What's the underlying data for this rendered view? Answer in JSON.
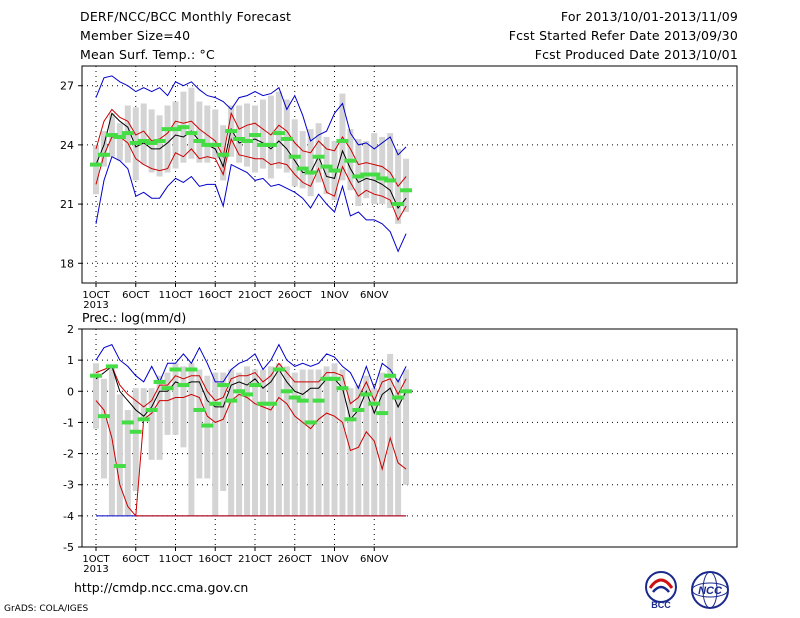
{
  "header": {
    "title": "DERF/NCC/BCC Monthly Forecast",
    "member_size": "Member Size=40",
    "variable": "Mean Surf. Temp.: °C",
    "for_period": "For 2013/10/01-2013/11/09",
    "fcst_started": "Fcst Started Refer Date 2013/09/30",
    "fcst_produced": "Fcst Produced Date 2013/10/01"
  },
  "footer": {
    "url": "http://cmdp.ncc.cma.gov.cn",
    "grads": "GrADS: COLA/IGES",
    "logo_left": "BCC",
    "logo_right": "NCC"
  },
  "colors": {
    "ensemble_max_min": "#0000cc",
    "spread": "#cc0000",
    "mean": "#000000",
    "box": "#d4d4d4",
    "marker": "#44dd44"
  },
  "chart_data": [
    {
      "type": "line",
      "title": "Mean Surf. Temp.: °C",
      "x_tick_labels": [
        "1OCT",
        "6OCT",
        "11OCT",
        "16OCT",
        "21OCT",
        "26OCT",
        "1NOV",
        "6NOV"
      ],
      "x_year_label": "2013",
      "x_dates": [
        "2013-10-01",
        "2013-10-02",
        "2013-10-03",
        "2013-10-04",
        "2013-10-05",
        "2013-10-06",
        "2013-10-07",
        "2013-10-08",
        "2013-10-09",
        "2013-10-10",
        "2013-10-11",
        "2013-10-12",
        "2013-10-13",
        "2013-10-14",
        "2013-10-15",
        "2013-10-16",
        "2013-10-17",
        "2013-10-18",
        "2013-10-19",
        "2013-10-20",
        "2013-10-21",
        "2013-10-22",
        "2013-10-23",
        "2013-10-24",
        "2013-10-25",
        "2013-10-26",
        "2013-10-27",
        "2013-10-28",
        "2013-10-29",
        "2013-10-30",
        "2013-10-31",
        "2013-11-01",
        "2013-11-02",
        "2013-11-03",
        "2013-11-04",
        "2013-11-05",
        "2013-11-06",
        "2013-11-07",
        "2013-11-08",
        "2013-11-09"
      ],
      "y_ticks": [
        18,
        21,
        24,
        27
      ],
      "ylim": [
        17,
        28
      ],
      "grid": true,
      "series": [
        {
          "role": "max",
          "values": [
            26.4,
            27.4,
            27.5,
            27.2,
            27.0,
            26.7,
            26.9,
            26.7,
            26.9,
            26.5,
            27.2,
            27.0,
            27.2,
            26.8,
            26.5,
            26.4,
            26.2,
            25.8,
            26.4,
            26.5,
            26.7,
            26.5,
            26.6,
            26.9,
            25.8,
            26.5,
            25.5,
            24.2,
            24.5,
            24.7,
            25.6,
            26.1,
            24.6,
            24.0,
            24.1,
            23.8,
            24.1,
            24.4,
            23.5,
            23.9
          ]
        },
        {
          "role": "upper",
          "values": [
            23.8,
            25.2,
            25.8,
            25.4,
            25.2,
            24.5,
            24.7,
            24.2,
            24.3,
            24.6,
            25.2,
            25.1,
            25.2,
            24.8,
            24.5,
            24.2,
            23.4,
            25.6,
            24.8,
            25.0,
            25.1,
            24.8,
            24.5,
            25.0,
            24.7,
            24.1,
            23.7,
            23.6,
            24.2,
            23.8,
            23.7,
            24.4,
            23.8,
            23.0,
            23.1,
            23.0,
            22.9,
            22.6,
            21.9,
            22.4
          ]
        },
        {
          "role": "mean",
          "values": [
            23.0,
            24.0,
            25.6,
            25.2,
            24.9,
            23.9,
            24.1,
            23.8,
            23.8,
            24.1,
            24.5,
            24.4,
            24.7,
            24.2,
            24.0,
            23.8,
            22.9,
            24.8,
            24.1,
            24.2,
            24.3,
            24.1,
            23.8,
            24.2,
            23.8,
            23.2,
            22.6,
            22.6,
            23.4,
            22.4,
            22.3,
            23.7,
            22.8,
            22.1,
            22.3,
            22.2,
            22.0,
            21.7,
            20.8,
            21.3
          ]
        },
        {
          "role": "lower",
          "values": [
            22.0,
            23.5,
            24.4,
            24.4,
            24.1,
            23.3,
            23.0,
            22.8,
            22.7,
            22.8,
            23.6,
            23.4,
            23.8,
            23.3,
            23.4,
            23.3,
            22.5,
            24.3,
            23.5,
            23.4,
            23.3,
            23.3,
            23.0,
            23.1,
            23.0,
            22.5,
            22.1,
            21.9,
            22.8,
            21.6,
            21.4,
            22.9,
            22.1,
            21.4,
            21.7,
            21.5,
            21.4,
            21.2,
            20.2,
            20.9
          ]
        },
        {
          "role": "min",
          "values": [
            20.0,
            22.2,
            23.4,
            23.2,
            22.8,
            21.4,
            21.6,
            21.3,
            21.3,
            21.9,
            22.3,
            22.1,
            22.4,
            21.9,
            22.0,
            22.0,
            20.9,
            23.0,
            22.8,
            22.6,
            22.2,
            22.3,
            21.9,
            22.0,
            21.8,
            21.6,
            21.3,
            20.8,
            21.5,
            21.0,
            20.6,
            21.9,
            20.4,
            20.6,
            20.2,
            20.2,
            20.0,
            19.6,
            18.6,
            19.5
          ]
        }
      ],
      "boxes": {
        "high": [
          24.0,
          24.7,
          25.6,
          25.1,
          26.0,
          25.9,
          26.1,
          25.8,
          25.5,
          26.0,
          26.2,
          26.7,
          26.9,
          26.2,
          26.0,
          25.8,
          25.0,
          26.0,
          26.0,
          26.1,
          26.0,
          26.3,
          26.5,
          26.7,
          26.3,
          25.3,
          24.7,
          24.8,
          25.1,
          24.4,
          24.2,
          26.6,
          24.8,
          24.3,
          24.2,
          24.6,
          24.4,
          24.6,
          23.8,
          23.3
        ],
        "low": [
          21.5,
          22.9,
          23.4,
          23.2,
          23.1,
          22.2,
          23.0,
          22.6,
          22.4,
          22.6,
          22.8,
          23.1,
          23.3,
          23.1,
          23.1,
          23.3,
          22.2,
          23.4,
          23.1,
          22.9,
          22.6,
          22.8,
          22.3,
          22.8,
          22.6,
          21.9,
          21.8,
          21.4,
          22.1,
          21.5,
          21.2,
          22.2,
          21.7,
          20.9,
          21.3,
          21.0,
          21.0,
          20.8,
          20.0,
          20.6
        ]
      },
      "markers": [
        23.0,
        23.5,
        24.5,
        24.4,
        24.6,
        24.1,
        24.2,
        24.1,
        24.2,
        24.8,
        24.8,
        24.9,
        24.6,
        24.2,
        24.0,
        24.0,
        23.5,
        24.7,
        24.3,
        24.2,
        24.5,
        24.0,
        24.0,
        24.6,
        24.3,
        23.4,
        22.8,
        22.6,
        23.4,
        22.9,
        22.7,
        24.2,
        23.2,
        22.4,
        22.5,
        22.5,
        22.3,
        22.2,
        21.0,
        21.7
      ]
    },
    {
      "type": "line",
      "title": "Prec.: log(mm/d)",
      "x_tick_labels": [
        "1OCT",
        "6OCT",
        "11OCT",
        "16OCT",
        "21OCT",
        "26OCT",
        "1NOV",
        "6NOV"
      ],
      "x_year_label": "2013",
      "x_dates": [
        "2013-10-01",
        "2013-10-02",
        "2013-10-03",
        "2013-10-04",
        "2013-10-05",
        "2013-10-06",
        "2013-10-07",
        "2013-10-08",
        "2013-10-09",
        "2013-10-10",
        "2013-10-11",
        "2013-10-12",
        "2013-10-13",
        "2013-10-14",
        "2013-10-15",
        "2013-10-16",
        "2013-10-17",
        "2013-10-18",
        "2013-10-19",
        "2013-10-20",
        "2013-10-21",
        "2013-10-22",
        "2013-10-23",
        "2013-10-24",
        "2013-10-25",
        "2013-10-26",
        "2013-10-27",
        "2013-10-28",
        "2013-10-29",
        "2013-10-30",
        "2013-10-31",
        "2013-11-01",
        "2013-11-02",
        "2013-11-03",
        "2013-11-04",
        "2013-11-05",
        "2013-11-06",
        "2013-11-07",
        "2013-11-08",
        "2013-11-09"
      ],
      "y_ticks": [
        -5,
        -4,
        -3,
        -2,
        -1,
        0,
        1,
        2
      ],
      "ylim": [
        -5,
        2
      ],
      "grid": true,
      "series": [
        {
          "role": "max",
          "values": [
            1.0,
            1.4,
            1.5,
            1.0,
            0.8,
            0.5,
            0.3,
            0.8,
            0.3,
            0.9,
            0.9,
            1.2,
            0.9,
            1.4,
            0.9,
            0.3,
            0.3,
            0.7,
            0.9,
            1.0,
            1.2,
            0.7,
            1.0,
            1.5,
            1.0,
            0.8,
            0.9,
            0.8,
            0.9,
            1.2,
            1.1,
            0.8,
            0.6,
            0.1,
            0.8,
            0.1,
            0.9,
            0.7,
            0.3,
            0.8
          ]
        },
        {
          "role": "upper",
          "values": [
            0.6,
            0.7,
            0.8,
            0.2,
            -0.1,
            -0.3,
            -0.5,
            -0.3,
            0.2,
            0.2,
            0.5,
            0.4,
            0.5,
            0.5,
            0.0,
            -0.3,
            -0.2,
            0.4,
            0.5,
            0.5,
            0.6,
            0.3,
            0.5,
            0.9,
            0.6,
            0.3,
            0.3,
            0.3,
            0.3,
            0.6,
            0.6,
            0.5,
            -0.4,
            -0.2,
            0.3,
            -0.3,
            0.3,
            0.4,
            -0.1,
            0.4
          ]
        },
        {
          "role": "mean",
          "values": [
            0.4,
            0.6,
            0.8,
            0.0,
            -0.3,
            -0.6,
            -0.8,
            -0.5,
            0.0,
            0.0,
            0.3,
            0.2,
            0.3,
            0.3,
            -0.3,
            -0.5,
            -0.5,
            0.2,
            0.3,
            0.2,
            0.4,
            0.1,
            0.3,
            0.7,
            0.3,
            0.0,
            -0.1,
            0.1,
            0.1,
            0.4,
            0.4,
            0.1,
            -0.9,
            -0.6,
            0.0,
            -0.7,
            -0.1,
            0.1,
            -0.5,
            0.0
          ]
        },
        {
          "role": "lower",
          "values": [
            -0.3,
            -0.6,
            -1.5,
            -3.0,
            -3.7,
            -4.0,
            -4.0,
            -4.0,
            -4.0,
            -4.0,
            -4.0,
            -4.0,
            -4.0,
            -4.0,
            -4.0,
            -4.0,
            -4.0,
            -4.0,
            -4.0,
            -4.0,
            -4.0,
            -4.0,
            -4.0,
            -4.0,
            -4.0,
            -4.0,
            -4.0,
            -4.0,
            -4.0,
            -4.0,
            -4.0,
            -4.0,
            -4.0,
            -4.0,
            -4.0,
            -4.0,
            -4.0,
            -4.0,
            -4.0,
            -4.0
          ]
        },
        {
          "role": "min",
          "values": [
            -4.0,
            -4.0,
            -4.0,
            -4.0,
            -4.0,
            -4.0,
            -4.0,
            -4.0,
            -4.0,
            -4.0,
            -4.0,
            -4.0,
            -4.0,
            -4.0,
            -4.0,
            -4.0,
            -4.0,
            -4.0,
            -4.0,
            -4.0,
            -4.0,
            -4.0,
            -4.0,
            -4.0,
            -4.0,
            -4.0,
            -4.0,
            -4.0,
            -4.0,
            -4.0,
            -4.0,
            -4.0,
            -4.0,
            -4.0,
            -4.0,
            -4.0,
            -4.0,
            -4.0,
            -4.0,
            -4.0
          ]
        }
      ],
      "spread_low_line": [
        -0.3,
        -0.6,
        -1.5,
        -3.0,
        -3.7,
        -4.0,
        null,
        null,
        null,
        null,
        null,
        null,
        null,
        null,
        null,
        null,
        null,
        null,
        null,
        null,
        null,
        null,
        null,
        null,
        null,
        null,
        null,
        null,
        null,
        null,
        null,
        null,
        null,
        null,
        null,
        null,
        null,
        null,
        null,
        null
      ],
      "red_lower": [
        -0.3,
        -0.6,
        -1.5,
        -3.0,
        -3.7,
        -4.0,
        -0.9,
        -0.7,
        -0.3,
        -0.3,
        -0.2,
        -0.2,
        -0.1,
        -0.2,
        -0.8,
        -1.0,
        -0.9,
        -0.3,
        -0.1,
        -0.2,
        -0.4,
        -0.5,
        -0.6,
        -0.2,
        -0.4,
        -0.8,
        -1.0,
        -1.2,
        -0.9,
        -0.7,
        -0.8,
        -1.0,
        -1.9,
        -1.8,
        -1.3,
        -1.6,
        -2.5,
        -1.5,
        -2.3,
        -2.5
      ],
      "boxes": {
        "high": [
          0.9,
          0.4,
          0.8,
          -0.1,
          -0.6,
          0.1,
          0.1,
          0.1,
          0.5,
          0.6,
          0.9,
          0.8,
          0.9,
          0.7,
          0.5,
          0.6,
          0.6,
          0.7,
          0.6,
          0.8,
          0.7,
          0.7,
          0.8,
          0.9,
          0.8,
          0.6,
          0.7,
          0.7,
          0.7,
          0.8,
          0.9,
          0.7,
          0.1,
          0.2,
          0.5,
          0.1,
          0.6,
          1.2,
          0.4,
          0.7
        ],
        "low": [
          -1.2,
          -2.8,
          -4.0,
          -4.0,
          -4.0,
          -3.2,
          -0.9,
          -2.2,
          -2.2,
          -1.4,
          -1.4,
          -1.8,
          -4.0,
          -2.8,
          -2.8,
          -4.0,
          -3.2,
          -4.0,
          -4.0,
          -4.0,
          -4.0,
          -4.0,
          -4.0,
          -4.0,
          -4.0,
          -4.0,
          -4.0,
          -4.0,
          -4.0,
          -4.0,
          -4.0,
          -4.0,
          -4.0,
          -4.0,
          -4.0,
          -4.0,
          -4.0,
          -4.0,
          -4.0,
          -3.0
        ]
      },
      "markers": [
        0.5,
        -0.8,
        0.8,
        -2.4,
        -1.0,
        -1.3,
        -0.9,
        -0.6,
        0.3,
        0.1,
        0.7,
        0.2,
        0.7,
        -0.6,
        -1.1,
        -0.4,
        0.2,
        -0.3,
        0.0,
        -0.1,
        0.2,
        -0.4,
        -0.4,
        0.7,
        0.0,
        -0.2,
        -0.3,
        -1.0,
        -0.3,
        0.4,
        0.4,
        0.1,
        -0.9,
        -0.6,
        -0.1,
        -0.4,
        -0.7,
        0.5,
        -0.2,
        0.0
      ]
    }
  ]
}
